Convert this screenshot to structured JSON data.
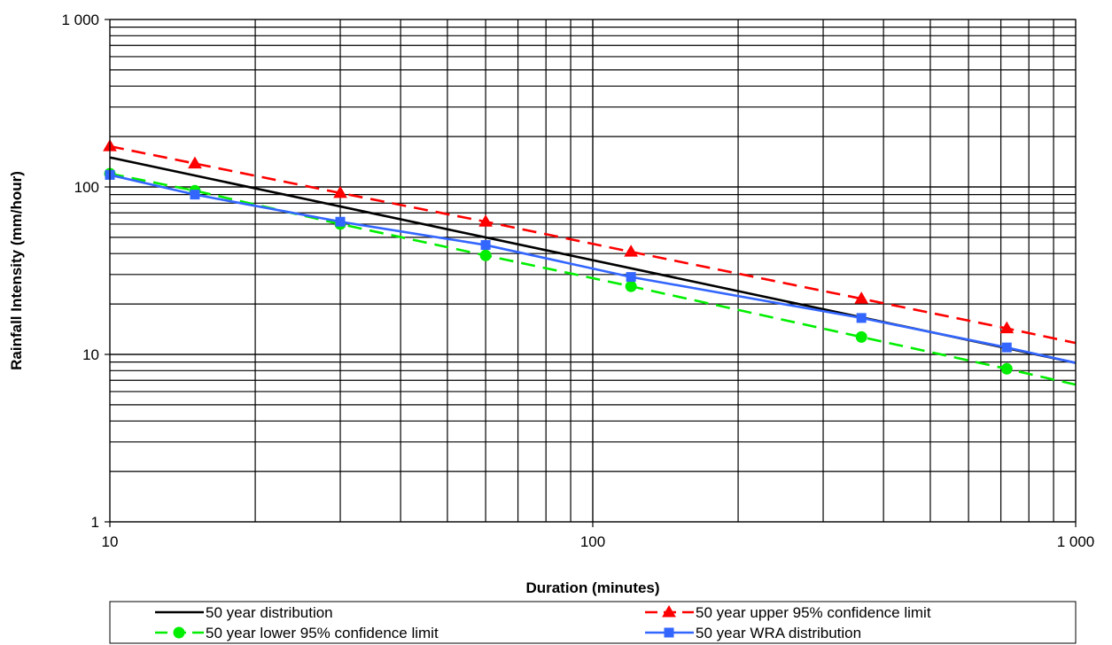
{
  "chart_data": {
    "type": "line",
    "xlabel": "Duration (minutes)",
    "ylabel": "Rainfall Intensity (mm/hour)",
    "xscale": "log",
    "yscale": "log",
    "xlim": [
      10,
      1000
    ],
    "ylim": [
      1,
      1000
    ],
    "x_ticks": [
      10,
      100,
      1000
    ],
    "x_tick_labels": [
      "10",
      "100",
      "1 000"
    ],
    "y_ticks": [
      1,
      10,
      100,
      1000
    ],
    "y_tick_labels": [
      "1",
      "10",
      "100",
      "1 000"
    ],
    "grid": true,
    "legend_position": "bottom",
    "series": [
      {
        "name": "50 year distribution",
        "color": "#000000",
        "dash": "solid",
        "marker": "none",
        "x": [
          10,
          1000
        ],
        "y": [
          150,
          8.9
        ]
      },
      {
        "name": "50 year upper 95% confidence limit",
        "color": "#ff0000",
        "dash": "dashed",
        "marker": "triangle",
        "x": [
          10,
          15,
          30,
          60,
          120,
          360,
          720,
          1000
        ],
        "y": [
          175,
          138,
          92,
          62,
          41,
          21.5,
          14.3,
          11.7
        ],
        "marker_x": [
          10,
          15,
          30,
          60,
          120,
          360,
          720
        ]
      },
      {
        "name": "50 year lower 95% confidence limit",
        "color": "#00ee00",
        "dash": "dashed",
        "marker": "circle",
        "x": [
          10,
          15,
          30,
          60,
          120,
          360,
          720,
          1000
        ],
        "y": [
          120,
          95,
          60,
          39,
          25.5,
          12.7,
          8.2,
          6.6
        ],
        "marker_x": [
          10,
          15,
          30,
          60,
          120,
          360,
          720
        ]
      },
      {
        "name": "50 year WRA distribution",
        "color": "#3366ff",
        "dash": "solid",
        "marker": "square",
        "x": [
          10,
          15,
          30,
          60,
          120,
          360,
          720,
          1000
        ],
        "y": [
          118,
          90,
          62,
          45,
          29,
          16.5,
          11,
          8.9
        ],
        "marker_x": [
          10,
          15,
          30,
          60,
          120,
          360,
          720
        ]
      }
    ]
  }
}
